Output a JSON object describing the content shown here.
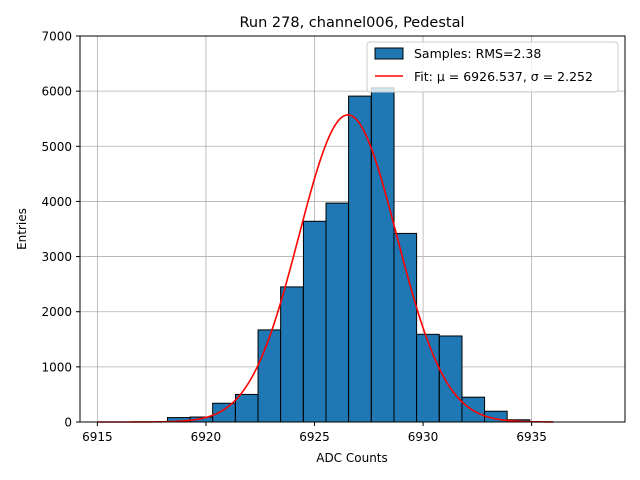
{
  "chart_data": {
    "type": "bar",
    "title": "Run 278, channel006, Pedestal",
    "xlabel": "ADC Counts",
    "ylabel": "Entries",
    "xlim": [
      6914.2,
      6939.3
    ],
    "ylim": [
      0,
      7000
    ],
    "xticks": [
      6915,
      6920,
      6925,
      6930,
      6935
    ],
    "yticks": [
      0,
      1000,
      2000,
      3000,
      4000,
      5000,
      6000,
      7000
    ],
    "grid": true,
    "legend_position": "top-right",
    "bin_width": 1.043,
    "bins": [
      {
        "left": 6918.23,
        "value": 80
      },
      {
        "left": 6919.27,
        "value": 90
      },
      {
        "left": 6920.31,
        "value": 340
      },
      {
        "left": 6921.36,
        "value": 500
      },
      {
        "left": 6922.4,
        "value": 1670
      },
      {
        "left": 6923.44,
        "value": 2450
      },
      {
        "left": 6924.49,
        "value": 3640
      },
      {
        "left": 6925.53,
        "value": 3970
      },
      {
        "left": 6926.57,
        "value": 5910
      },
      {
        "left": 6927.62,
        "value": 6060
      },
      {
        "left": 6928.66,
        "value": 3420
      },
      {
        "left": 6929.7,
        "value": 1590
      },
      {
        "left": 6930.75,
        "value": 1560
      },
      {
        "left": 6931.79,
        "value": 450
      },
      {
        "left": 6932.83,
        "value": 195
      },
      {
        "left": 6933.87,
        "value": 40
      }
    ],
    "series": [
      {
        "name": "Samples: RMS=2.38",
        "kind": "histogram",
        "color": "#1f77b4",
        "edgecolor": "#000000"
      },
      {
        "name": "Fit: μ = 6926.537, σ = 2.252",
        "kind": "gaussian",
        "color": "#ff0000",
        "mu": 6926.537,
        "sigma": 2.252,
        "amplitude": 5570,
        "x_range": [
          6915,
          6936
        ]
      }
    ]
  }
}
